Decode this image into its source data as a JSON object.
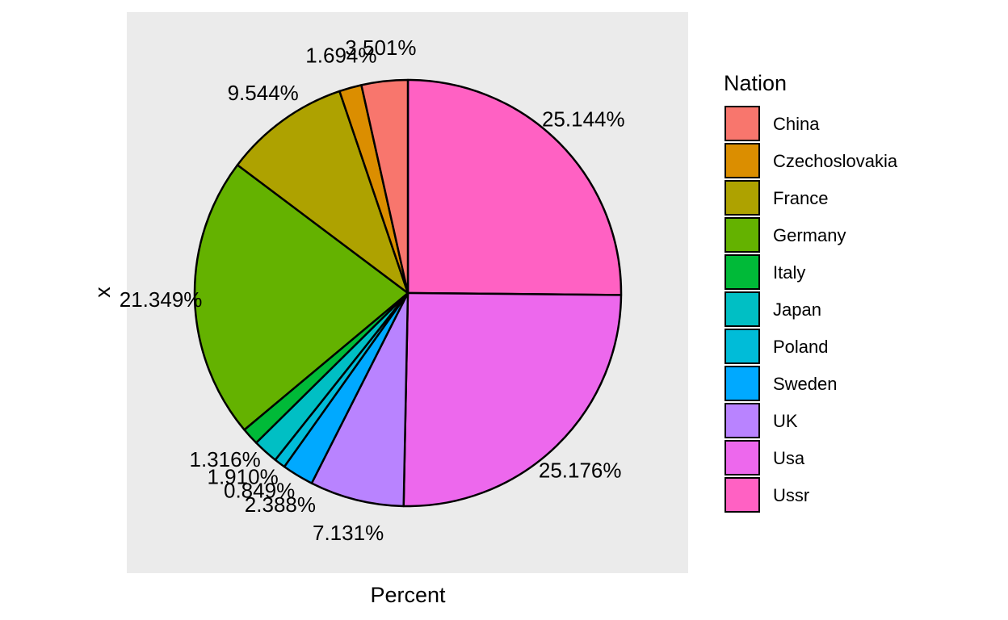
{
  "chart_data": {
    "type": "pie",
    "title": "",
    "xlabel": "Percent",
    "ylabel": "x",
    "legend": {
      "title": "Nation",
      "position": "right"
    },
    "start_angle_deg": 0,
    "direction": "clockwise",
    "slices": [
      {
        "name": "Ussr",
        "value": 25.144,
        "label": "25.144%",
        "color": "#FF61C3"
      },
      {
        "name": "Usa",
        "value": 25.176,
        "label": "25.176%",
        "color": "#ED68ED"
      },
      {
        "name": "UK",
        "value": 7.131,
        "label": "7.131%",
        "color": "#B983FF"
      },
      {
        "name": "Sweden",
        "value": 2.388,
        "label": "2.388%",
        "color": "#00A9FF"
      },
      {
        "name": "Poland",
        "value": 0.849,
        "label": "0.849%",
        "color": "#00BCD8"
      },
      {
        "name": "Japan",
        "value": 1.91,
        "label": "1.910%",
        "color": "#00BFC4"
      },
      {
        "name": "Italy",
        "value": 1.316,
        "label": "1.316%",
        "color": "#00BA38"
      },
      {
        "name": "Germany",
        "value": 21.349,
        "label": "21.349%",
        "color": "#64B200"
      },
      {
        "name": "France",
        "value": 9.544,
        "label": "9.544%",
        "color": "#AEA200"
      },
      {
        "name": "Czechoslovakia",
        "value": 1.694,
        "label": "1.694%",
        "color": "#DB8E00"
      },
      {
        "name": "China",
        "value": 3.501,
        "label": "3.501%",
        "color": "#F8766D"
      }
    ],
    "legend_order": [
      "China",
      "Czechoslovakia",
      "France",
      "Germany",
      "Italy",
      "Japan",
      "Poland",
      "Sweden",
      "UK",
      "Usa",
      "Ussr"
    ]
  }
}
